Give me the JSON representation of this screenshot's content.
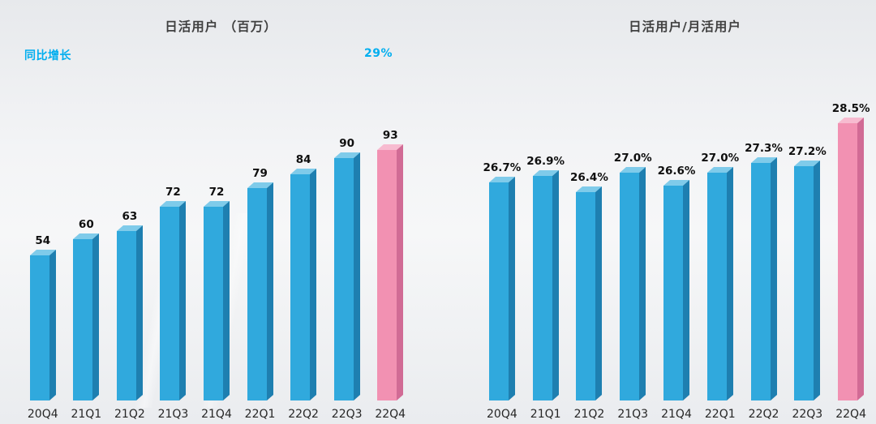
{
  "colors": {
    "accent_cyan": "#00AEEF",
    "bar_default": {
      "front": "#30A9DD",
      "side": "#1E7FB0",
      "top": "#7FCBEA"
    },
    "bar_highlight": {
      "front": "#F291B2",
      "side": "#D16B95",
      "top": "#F7BBD0"
    }
  },
  "chart_data": [
    {
      "type": "bar",
      "title": "日活用户 （百万）",
      "xlabel": "",
      "ylabel": "",
      "categories": [
        "20Q4",
        "21Q1",
        "21Q2",
        "21Q3",
        "21Q4",
        "22Q1",
        "22Q2",
        "22Q3",
        "22Q4"
      ],
      "values": [
        54,
        60,
        63,
        72,
        72,
        79,
        84,
        90,
        93
      ],
      "labels": [
        "54",
        "60",
        "63",
        "72",
        "72",
        "79",
        "84",
        "90",
        "93"
      ],
      "ylim": [
        0,
        100
      ],
      "grid": false,
      "legend": "none",
      "highlight_index": 8,
      "annotations": [
        {
          "text": "同比增长"
        },
        {
          "text": "29%"
        }
      ]
    },
    {
      "type": "bar",
      "title": "日活用户/月活用户",
      "xlabel": "",
      "ylabel": "",
      "categories": [
        "20Q4",
        "21Q1",
        "21Q2",
        "21Q3",
        "21Q4",
        "22Q1",
        "22Q2",
        "22Q3",
        "22Q4"
      ],
      "values": [
        26.7,
        26.9,
        26.4,
        27.0,
        26.6,
        27.0,
        27.3,
        27.2,
        28.5
      ],
      "labels": [
        "26.7%",
        "26.9%",
        "26.4%",
        "27.0%",
        "26.6%",
        "27.0%",
        "27.3%",
        "27.2%",
        "28.5%"
      ],
      "ylim": [
        20,
        30
      ],
      "grid": false,
      "legend": "none",
      "highlight_index": 8,
      "annotations": []
    }
  ]
}
